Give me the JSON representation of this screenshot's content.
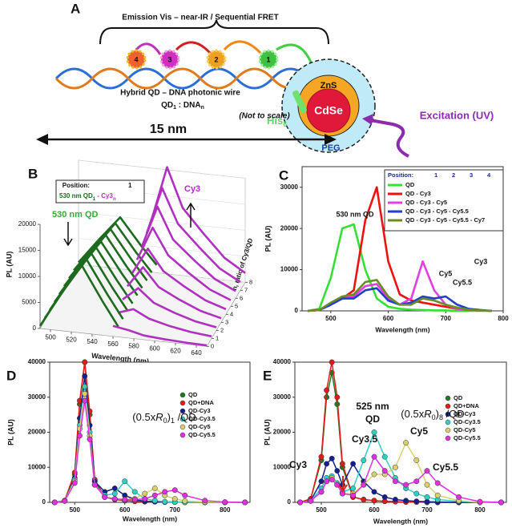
{
  "panel_a": {
    "letter": "A",
    "brace_label": "Emission Vis – near-IR / Sequential FRET",
    "dyes": [
      "4",
      "3",
      "2",
      "1"
    ],
    "shell": "ZnS",
    "core": "CdSe",
    "his": {
      "text": "His",
      "sub": "6"
    },
    "peg": "PEG",
    "excitation": "Excitation (UV)",
    "wire_label": "Hybrid QD – DNA photonic wire",
    "ratio": {
      "a": "QD",
      "a_sub": "1",
      "sep": " : DNA",
      "b_sub": "n"
    },
    "scale_note": "(Not to scale)",
    "length": "15 nm"
  },
  "panel_b": {
    "type": "waterfall",
    "letter": "B",
    "ylabel": "PL (AU)",
    "xlabel": "Wavelength (nm)",
    "zlabel": "n, ratio of Cy3/QD",
    "legend": {
      "header": "Position:",
      "position": "1",
      "qd": "530 nm QD",
      "qd_sub": "1",
      "dash": " - Cy3",
      "cy_sub": "n"
    },
    "qd_label": "530 nm QD",
    "cy3_label": "Cy3",
    "yticks": [
      0,
      5000,
      10000,
      15000,
      20000
    ],
    "ylim": [
      0,
      20000
    ],
    "xticks": [
      500,
      520,
      540,
      560,
      580,
      600,
      620,
      640
    ],
    "xlim": [
      490,
      650
    ],
    "zticks": [
      0,
      1,
      2,
      3,
      4,
      5,
      6,
      7,
      8
    ],
    "zlim": [
      0,
      8
    ],
    "qd_color": "#1d6b1d",
    "cy3_color": "#b030c0",
    "qd_x": [
      490,
      510,
      530,
      550,
      565
    ],
    "cy3_x": [
      560,
      575,
      590,
      610,
      630,
      650
    ],
    "curves": [
      {
        "n": 0,
        "qd": [
          500,
          7000,
          13000,
          6500,
          2000
        ],
        "cy3": [
          2000,
          1500,
          800,
          500,
          300,
          200
        ]
      },
      {
        "n": 1,
        "qd": [
          490,
          6800,
          12600,
          6300,
          1900
        ],
        "cy3": [
          3000,
          4000,
          2500,
          1500,
          800,
          400
        ]
      },
      {
        "n": 2,
        "qd": [
          470,
          6600,
          12200,
          6100,
          1900
        ],
        "cy3": [
          4000,
          6500,
          4000,
          2500,
          1300,
          600
        ]
      },
      {
        "n": 3,
        "qd": [
          460,
          6400,
          11800,
          5900,
          1800
        ],
        "cy3": [
          5000,
          9000,
          5500,
          3500,
          1800,
          800
        ]
      },
      {
        "n": 4,
        "qd": [
          440,
          6200,
          11400,
          5700,
          1800
        ],
        "cy3": [
          6000,
          11000,
          7000,
          4500,
          2300,
          1000
        ]
      },
      {
        "n": 5,
        "qd": [
          430,
          6000,
          11100,
          5500,
          1700
        ],
        "cy3": [
          7000,
          13500,
          8500,
          5500,
          2800,
          1200
        ]
      },
      {
        "n": 6,
        "qd": [
          410,
          5700,
          10700,
          5300,
          1600
        ],
        "cy3": [
          8000,
          16000,
          10000,
          6500,
          3300,
          1400
        ]
      },
      {
        "n": 7,
        "qd": [
          400,
          5500,
          10300,
          5100,
          1600
        ],
        "cy3": [
          9000,
          18000,
          11500,
          7500,
          3800,
          1600
        ]
      },
      {
        "n": 8,
        "qd": [
          380,
          5300,
          9900,
          4900,
          1500
        ],
        "cy3": [
          10000,
          20500,
          13000,
          8500,
          4300,
          1800
        ]
      }
    ]
  },
  "chart_data": [
    {
      "type": "line",
      "letter": "C",
      "markers": false,
      "xlabel": "Wavelength (nm)",
      "ylabel": "PL (AU)",
      "legend_header": {
        "label": "Position:",
        "positions": [
          "1",
          "2",
          "3",
          "4"
        ]
      },
      "annotations": [
        "530 nm QD",
        "Cy3",
        "Cy5",
        "Cy5.5"
      ],
      "xlim": [
        450,
        800
      ],
      "xticks": [
        500,
        600,
        700,
        800
      ],
      "ylim": [
        0,
        35000
      ],
      "yticks": [
        0,
        10000,
        20000,
        30000
      ],
      "x": [
        460,
        480,
        500,
        520,
        540,
        560,
        580,
        600,
        620,
        640,
        660,
        680,
        700,
        720,
        740,
        760,
        780
      ],
      "series": [
        {
          "name": "QD",
          "color": "#33e033",
          "values": [
            0,
            500,
            8000,
            20000,
            21000,
            10000,
            3000,
            1000,
            500,
            300,
            200,
            100,
            100,
            0,
            0,
            0,
            0
          ]
        },
        {
          "name": "QD - Cy3",
          "color": "#ee1111",
          "values": [
            0,
            200,
            1500,
            3000,
            5000,
            22000,
            30000,
            12000,
            4000,
            2500,
            2000,
            1500,
            1000,
            500,
            200,
            100,
            0
          ]
        },
        {
          "name": "QD - Cy3 - Cy5",
          "color": "#e040e0",
          "values": [
            0,
            200,
            1500,
            3000,
            3500,
            6000,
            6500,
            3000,
            1500,
            3000,
            12000,
            5000,
            1500,
            500,
            200,
            100,
            0
          ]
        },
        {
          "name": "QD - Cy3 - Cy5 - Cy5.5",
          "color": "#2040c8",
          "values": [
            0,
            200,
            1500,
            3000,
            3000,
            5000,
            5500,
            2500,
            1500,
            2000,
            3500,
            3000,
            3500,
            1500,
            500,
            200,
            0
          ]
        },
        {
          "name": "QD - Cy3 - Cy5 - Cy5.5 - Cy7",
          "color": "#6b8e23",
          "values": [
            0,
            200,
            2000,
            3500,
            4000,
            7000,
            7500,
            3500,
            1500,
            1500,
            3000,
            2500,
            1500,
            800,
            300,
            100,
            0
          ]
        }
      ]
    },
    {
      "type": "line",
      "letter": "D",
      "markers": true,
      "xlabel": "Wavelength (nm)",
      "ylabel": "PL (AU)",
      "ratio_label": {
        "pre": "(0.5x",
        "r": "R",
        "r_sub": "0",
        "close": ")",
        "n": "1",
        "post": " /QD"
      },
      "annotations": [],
      "xlim": [
        450,
        850
      ],
      "xticks": [
        500,
        600,
        700,
        800
      ],
      "ylim": [
        0,
        40000
      ],
      "yticks": [
        0,
        10000,
        20000,
        30000,
        40000
      ],
      "x": [
        460,
        480,
        500,
        510,
        520,
        530,
        540,
        560,
        580,
        600,
        620,
        640,
        660,
        680,
        700,
        720,
        760,
        800,
        840
      ],
      "series": [
        {
          "name": "QD",
          "color": "#1f7a1f",
          "values": [
            0,
            500,
            8000,
            28000,
            40000,
            25000,
            6000,
            1500,
            800,
            500,
            300,
            200,
            200,
            100,
            100,
            0,
            0,
            0,
            0
          ]
        },
        {
          "name": "QD+DNA",
          "color": "#e01b1b",
          "values": [
            0,
            500,
            8500,
            29000,
            40000,
            26000,
            6500,
            1500,
            900,
            500,
            300,
            200,
            200,
            100,
            100,
            0,
            0,
            0,
            0
          ]
        },
        {
          "name": "QD-Cy3",
          "color": "#141e8c",
          "values": [
            0,
            400,
            7000,
            24000,
            36000,
            22000,
            6000,
            3000,
            4000,
            2000,
            800,
            300,
            200,
            100,
            100,
            0,
            0,
            0,
            0
          ]
        },
        {
          "name": "QD-Cy3.5",
          "color": "#2fd0c0",
          "values": [
            0,
            400,
            6500,
            22000,
            33000,
            20000,
            5000,
            2000,
            2500,
            6000,
            3000,
            1000,
            500,
            200,
            100,
            0,
            0,
            0,
            0
          ]
        },
        {
          "name": "QD-Cy5",
          "color": "#d8d070",
          "values": [
            0,
            400,
            6000,
            21000,
            31000,
            19000,
            5000,
            1500,
            1000,
            800,
            1000,
            2500,
            4000,
            2000,
            1000,
            400,
            100,
            0,
            0
          ]
        },
        {
          "name": "QD-Cy5.5",
          "color": "#e030e0",
          "values": [
            0,
            400,
            5500,
            19000,
            29000,
            18000,
            5000,
            1500,
            1000,
            800,
            800,
            1000,
            2000,
            3000,
            3500,
            2000,
            500,
            100,
            0
          ]
        }
      ]
    },
    {
      "type": "line",
      "letter": "E",
      "markers": true,
      "xlabel": "Wavelength (nm)",
      "ylabel": "PL (AU)",
      "ratio_label": {
        "pre": "(0.5x",
        "r": "R",
        "r_sub": "0",
        "close": ")",
        "n": "8",
        "post": " /QD"
      },
      "qd_label": [
        "525 nm",
        "QD"
      ],
      "annotations": [
        "Cy3",
        "Cy3.5",
        "Cy5",
        "Cy5.5"
      ],
      "xlim": [
        450,
        850
      ],
      "xticks": [
        500,
        600,
        700,
        800
      ],
      "ylim": [
        0,
        40000
      ],
      "yticks": [
        0,
        10000,
        20000,
        30000,
        40000
      ],
      "x": [
        460,
        480,
        500,
        510,
        520,
        530,
        540,
        560,
        580,
        600,
        620,
        640,
        660,
        680,
        700,
        720,
        760,
        800,
        840
      ],
      "series": [
        {
          "name": "QD",
          "color": "#1f7a1f",
          "values": [
            0,
            1000,
            12000,
            30000,
            37000,
            28000,
            10000,
            1500,
            800,
            500,
            300,
            200,
            100,
            100,
            0,
            0,
            0,
            0,
            0
          ]
        },
        {
          "name": "QD+DNA",
          "color": "#e01b1b",
          "values": [
            0,
            1000,
            13000,
            32000,
            40000,
            30000,
            11000,
            1500,
            800,
            500,
            300,
            200,
            100,
            100,
            0,
            0,
            0,
            0,
            0
          ]
        },
        {
          "name": "QD-Cy3",
          "color": "#141e8c",
          "values": [
            0,
            500,
            6000,
            11000,
            12500,
            9000,
            5000,
            11000,
            6000,
            3000,
            1500,
            800,
            500,
            300,
            200,
            100,
            0,
            0,
            0
          ]
        },
        {
          "name": "QD-Cy3.5",
          "color": "#2fd0c0",
          "values": [
            0,
            400,
            4000,
            7000,
            7500,
            5500,
            3000,
            4000,
            12000,
            20000,
            13000,
            7000,
            4000,
            2500,
            1500,
            800,
            300,
            0,
            0
          ]
        },
        {
          "name": "QD-Cy5",
          "color": "#d8d070",
          "values": [
            0,
            400,
            3000,
            6000,
            7000,
            5000,
            2500,
            2500,
            5000,
            8000,
            8000,
            10000,
            17000,
            12000,
            5000,
            2000,
            500,
            0,
            0
          ]
        },
        {
          "name": "QD-Cy5.5",
          "color": "#e030e0",
          "values": [
            0,
            400,
            3000,
            6000,
            6500,
            5000,
            2500,
            2000,
            5000,
            13000,
            9000,
            6000,
            5000,
            6000,
            9000,
            5500,
            1500,
            200,
            0
          ]
        }
      ]
    }
  ]
}
